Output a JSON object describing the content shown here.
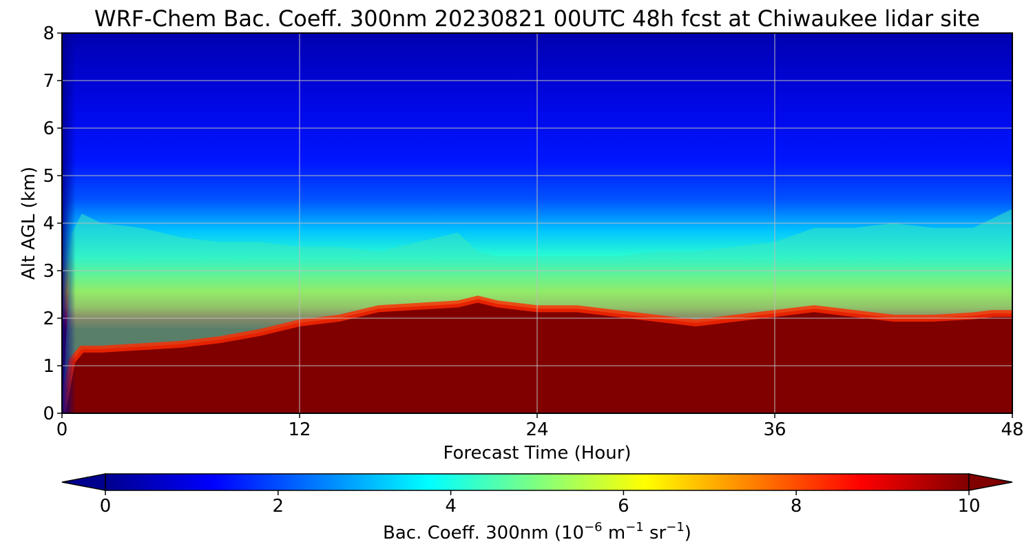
{
  "chart_data": {
    "type": "heatmap",
    "title": "WRF-Chem Bac. Coeff. 300nm  20230821 00UTC 48h fcst at Chiwaukee lidar site",
    "xlabel": "Forecast Time (Hour)",
    "ylabel": "Alt AGL (km)",
    "xlim": [
      0,
      48
    ],
    "ylim": [
      0,
      8
    ],
    "x_ticks": [
      0,
      12,
      24,
      36,
      48
    ],
    "y_ticks": [
      0,
      1,
      2,
      3,
      4,
      5,
      6,
      7,
      8
    ],
    "grid": true,
    "colorbar": {
      "label_main": "Bac. Coeff. 300nm  (10",
      "label_exp1": "−6",
      "label_mid": " m",
      "label_exp2": "−1",
      "label_mid2": " sr",
      "label_exp3": "−1",
      "label_end": ")",
      "range": [
        0,
        10
      ],
      "ticks": [
        0,
        2,
        4,
        6,
        8,
        10
      ],
      "extend": "both",
      "colormap": "jet"
    },
    "hours": [
      0,
      0.5,
      1,
      2,
      4,
      6,
      8,
      10,
      12,
      14,
      16,
      18,
      20,
      21,
      22,
      24,
      26,
      28,
      30,
      32,
      34,
      36,
      38,
      40,
      42,
      44,
      46,
      47,
      48
    ],
    "aerosol_layer_top_km": [
      0,
      1.1,
      1.35,
      1.35,
      1.4,
      1.45,
      1.55,
      1.7,
      1.9,
      2.0,
      2.2,
      2.25,
      2.3,
      2.4,
      2.3,
      2.2,
      2.2,
      2.1,
      2.0,
      1.9,
      2.0,
      2.1,
      2.2,
      2.1,
      2.0,
      2.0,
      2.05,
      2.1,
      2.1
    ],
    "mid_layer_top_km": [
      0,
      3.8,
      4.2,
      4.0,
      3.9,
      3.7,
      3.6,
      3.6,
      3.5,
      3.5,
      3.4,
      3.6,
      3.8,
      3.4,
      3.3,
      3.3,
      3.3,
      3.3,
      3.4,
      3.4,
      3.5,
      3.6,
      3.9,
      3.9,
      4.0,
      3.9,
      3.9,
      4.1,
      4.3
    ]
  }
}
